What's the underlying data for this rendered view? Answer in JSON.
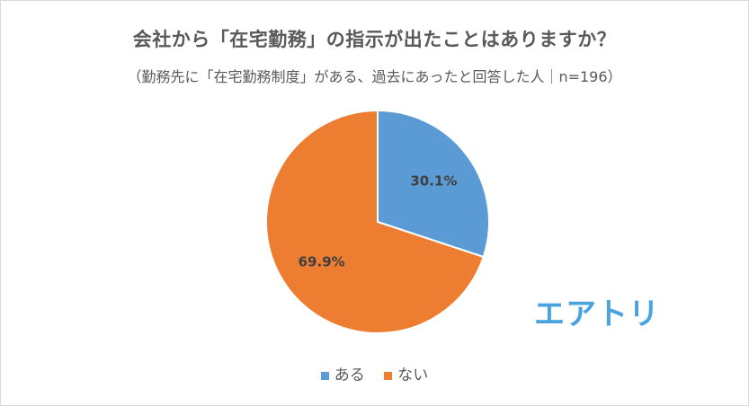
{
  "chart_data": {
    "type": "pie",
    "title": "会社から「在宅勤務」の指示が出たことはありますか？",
    "subtitle": "（勤務先に「在宅勤務制度」がある、過去にあったと回答した人｜n=196）",
    "categories": [
      "ある",
      "ない"
    ],
    "values": [
      30.1,
      69.9
    ],
    "data_labels": [
      "30.1%",
      "69.9%"
    ],
    "colors": [
      "#5b9bd5",
      "#ed7d31"
    ],
    "legend_position": "bottom",
    "start_angle_deg": 0,
    "direction": "clockwise"
  },
  "logo": {
    "text": "エアトリ",
    "color": "#4aa3df"
  }
}
